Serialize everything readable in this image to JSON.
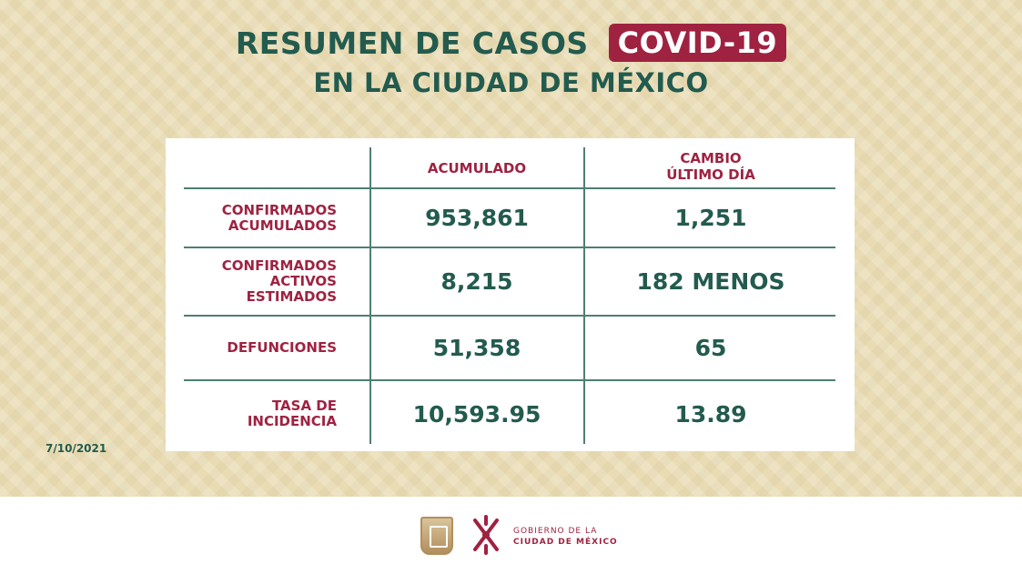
{
  "title": {
    "main": "RESUMEN DE CASOS",
    "badge": "COVID-19",
    "subtitle": "EN LA CIUDAD DE MÉXICO"
  },
  "table": {
    "headers": {
      "accumulated": "ACUMULADO",
      "change_line1": "CAMBIO",
      "change_line2": "ÚLTIMO DÍA"
    },
    "rows": [
      {
        "label_lines": [
          "CONFIRMADOS",
          "ACUMULADOS"
        ],
        "accumulated": "953,861",
        "change": "1,251"
      },
      {
        "label_lines": [
          "CONFIRMADOS",
          "ACTIVOS",
          "ESTIMADOS"
        ],
        "accumulated": "8,215",
        "change": "182 MENOS"
      },
      {
        "label_lines": [
          "DEFUNCIONES"
        ],
        "accumulated": "51,358",
        "change": "65"
      },
      {
        "label_lines": [
          "TASA DE",
          "INCIDENCIA"
        ],
        "accumulated": "10,593.95",
        "change": "13.89"
      }
    ]
  },
  "date": "7/10/2021",
  "footer": {
    "gov_line1": "GOBIERNO DE LA",
    "gov_line2": "CIUDAD DE MÉXICO"
  },
  "colors": {
    "green": "#235b4e",
    "maroon": "#9f2241",
    "gold": "#b38e5d",
    "background": "#e9dcb4"
  }
}
